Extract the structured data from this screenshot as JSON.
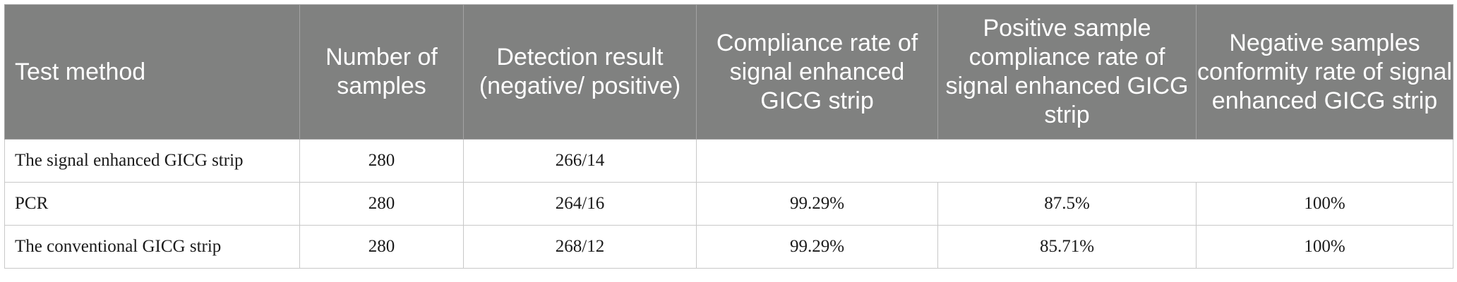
{
  "table": {
    "headers": [
      "Test method",
      "Number of samples",
      "Detection result (negative/ positive)",
      "Compliance rate of signal enhanced GICG strip",
      "Positive sample compliance rate of signal enhanced GICG strip",
      "Negative samples conformity rate of signal enhanced GICG strip"
    ],
    "rows": [
      [
        "The signal enhanced GICG strip",
        "280",
        "266/14",
        "",
        "",
        ""
      ],
      [
        "PCR",
        "280",
        "264/16",
        "99.29%",
        "87.5%",
        "100%"
      ],
      [
        "The conventional GICG strip",
        "280",
        "268/12",
        "99.29%",
        "85.71%",
        "100%"
      ]
    ]
  }
}
